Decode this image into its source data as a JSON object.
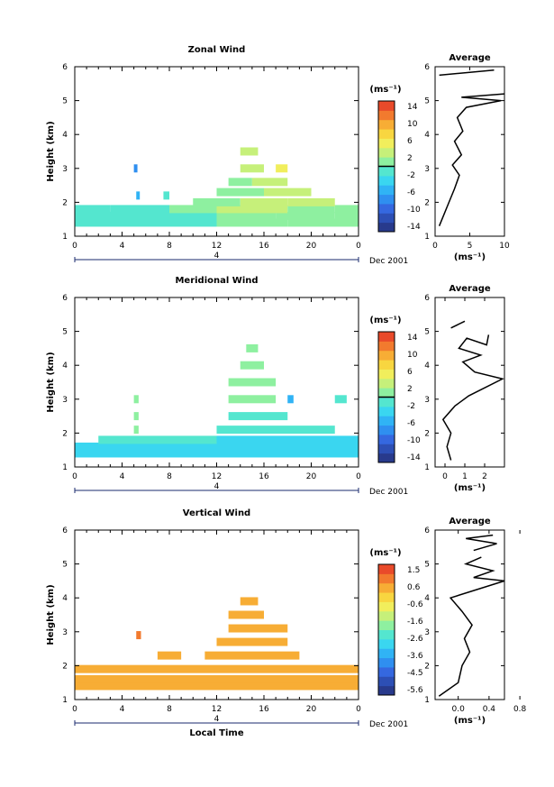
{
  "colors": {
    "scale": [
      "#283a8c",
      "#2d4fb5",
      "#3568e0",
      "#2f8ff0",
      "#30b3f5",
      "#3ad6f0",
      "#54e6cf",
      "#8ef0a0",
      "#c6f07a",
      "#f1ee5c",
      "#f8d640",
      "#f7ad35",
      "#f27a2e",
      "#e94a2a"
    ],
    "zero_line": "#000000"
  },
  "chart_data": [
    {
      "id": "zonal",
      "type": "heatmap",
      "title": "Zonal Wind",
      "ylabel": "Height (km)",
      "x_ticks": [
        "0",
        "4",
        "8",
        "12",
        "16",
        "20",
        "0"
      ],
      "xlim": [
        0,
        24
      ],
      "y_ticks": [
        "1",
        "2",
        "3",
        "4",
        "5",
        "6"
      ],
      "ylim": [
        1,
        6
      ],
      "date_scale": {
        "marker": "4",
        "label": "Dec 2001"
      },
      "colorbar": {
        "unit": "(ms⁻¹)",
        "ticks": [
          "14",
          "10",
          "6",
          "2",
          "-2",
          "-6",
          "-10",
          "-14"
        ],
        "range": [
          -16,
          16
        ],
        "zero": 0
      },
      "rows": [
        {
          "y": 1.4,
          "segments": [
            [
              0,
              12,
              -1
            ],
            [
              12,
              18,
              1
            ],
            [
              18,
              24,
              1
            ]
          ]
        },
        {
          "y": 1.6,
          "segments": [
            [
              0,
              8,
              -1
            ],
            [
              8,
              12,
              -1
            ],
            [
              12,
              17,
              2
            ],
            [
              17,
              22,
              2
            ],
            [
              22,
              24,
              1
            ]
          ]
        },
        {
          "y": 1.8,
          "segments": [
            [
              0,
              3,
              -2
            ],
            [
              3,
              8,
              -1
            ],
            [
              8,
              12,
              0
            ],
            [
              12,
              18,
              3
            ],
            [
              18,
              22,
              2
            ],
            [
              22,
              24,
              1
            ]
          ]
        },
        {
          "y": 2.0,
          "segments": [
            [
              10,
              14,
              1
            ],
            [
              14,
              18,
              3
            ],
            [
              18,
              22,
              3
            ]
          ]
        },
        {
          "y": 2.3,
          "segments": [
            [
              12,
              16,
              2
            ],
            [
              16,
              20,
              4
            ]
          ]
        },
        {
          "y": 2.6,
          "segments": [
            [
              13,
              15,
              2
            ],
            [
              15,
              18,
              4
            ]
          ]
        },
        {
          "y": 3.0,
          "segments": [
            [
              5,
              5.3,
              -8
            ],
            [
              14,
              16,
              3
            ],
            [
              17,
              18,
              5
            ]
          ]
        },
        {
          "y": 3.5,
          "segments": [
            [
              14,
              15.5,
              3
            ]
          ]
        },
        {
          "y": 2.2,
          "segments": [
            [
              5.2,
              5.5,
              -6
            ],
            [
              7.5,
              8,
              -1
            ]
          ]
        }
      ],
      "average": {
        "xlim": [
          0,
          10
        ],
        "x_ticks": [
          "0",
          "5",
          "10"
        ],
        "title": "Average",
        "xlabel": "(ms⁻¹)",
        "profile": [
          [
            0.6,
            1.3
          ],
          [
            1.2,
            1.6
          ],
          [
            2.0,
            2.0
          ],
          [
            2.8,
            2.4
          ],
          [
            3.5,
            2.8
          ],
          [
            2.5,
            3.1
          ],
          [
            3.8,
            3.4
          ],
          [
            2.8,
            3.8
          ],
          [
            4.0,
            4.1
          ],
          [
            3.2,
            4.5
          ],
          [
            4.5,
            4.8
          ],
          [
            9.5,
            5.0
          ],
          [
            3.8,
            5.1
          ],
          [
            10.5,
            5.2
          ]
        ],
        "profile_top": [
          [
            0.6,
            5.75
          ],
          [
            8.5,
            5.9
          ]
        ]
      }
    },
    {
      "id": "meridional",
      "type": "heatmap",
      "title": "Meridional Wind",
      "ylabel": "Height (km)",
      "x_ticks": [
        "0",
        "4",
        "8",
        "12",
        "16",
        "20",
        "0"
      ],
      "xlim": [
        0,
        24
      ],
      "y_ticks": [
        "1",
        "2",
        "3",
        "4",
        "5",
        "6"
      ],
      "ylim": [
        1,
        6
      ],
      "date_scale": {
        "marker": "4",
        "label": "Dec 2001"
      },
      "colorbar": {
        "unit": "(ms⁻¹)",
        "ticks": [
          "14",
          "10",
          "6",
          "2",
          "-2",
          "-6",
          "-10",
          "-14"
        ],
        "range": [
          -16,
          16
        ],
        "zero": 0
      },
      "rows": [
        {
          "y": 1.4,
          "segments": [
            [
              0,
              24,
              -4
            ]
          ]
        },
        {
          "y": 1.6,
          "segments": [
            [
              0,
              12,
              -3
            ],
            [
              12,
              24,
              -4
            ]
          ]
        },
        {
          "y": 1.8,
          "segments": [
            [
              2,
              12,
              -2
            ],
            [
              12,
              24,
              -3
            ]
          ]
        },
        {
          "y": 2.1,
          "segments": [
            [
              5,
              5.4,
              0
            ],
            [
              12,
              22,
              -2
            ]
          ]
        },
        {
          "y": 2.5,
          "segments": [
            [
              5,
              5.4,
              0
            ],
            [
              13,
              18,
              -1
            ]
          ]
        },
        {
          "y": 3.0,
          "segments": [
            [
              5,
              5.4,
              0
            ],
            [
              13,
              17,
              0
            ],
            [
              18,
              18.5,
              -6
            ],
            [
              22,
              23,
              -2
            ]
          ]
        },
        {
          "y": 3.5,
          "segments": [
            [
              13,
              17,
              0
            ],
            [
              14,
              16,
              1
            ]
          ]
        },
        {
          "y": 4.0,
          "segments": [
            [
              14,
              16,
              0
            ]
          ]
        },
        {
          "y": 4.5,
          "segments": [
            [
              14.5,
              15.5,
              0
            ]
          ]
        }
      ],
      "average": {
        "xlim": [
          -0.5,
          3
        ],
        "x_ticks": [
          "0",
          "1",
          "2"
        ],
        "title": "Average",
        "xlabel": "(ms⁻¹)",
        "profile": [
          [
            0.3,
            1.2
          ],
          [
            0.1,
            1.6
          ],
          [
            0.3,
            2.0
          ],
          [
            -0.1,
            2.4
          ],
          [
            0.5,
            2.8
          ],
          [
            1.2,
            3.1
          ],
          [
            2.9,
            3.6
          ],
          [
            1.5,
            3.8
          ],
          [
            0.9,
            4.1
          ],
          [
            1.8,
            4.3
          ],
          [
            0.7,
            4.5
          ],
          [
            1.1,
            4.8
          ],
          [
            2.1,
            4.6
          ],
          [
            2.2,
            4.9
          ]
        ],
        "profile_top": [
          [
            0.3,
            5.1
          ],
          [
            1.0,
            5.3
          ]
        ]
      }
    },
    {
      "id": "vertical",
      "type": "heatmap",
      "title": "Vertical Wind",
      "ylabel": "Height (km)",
      "xlabel": "Local Time",
      "x_ticks": [
        "0",
        "4",
        "8",
        "12",
        "16",
        "20",
        "0"
      ],
      "xlim": [
        0,
        24
      ],
      "y_ticks": [
        "1",
        "2",
        "3",
        "4",
        "5",
        "6"
      ],
      "ylim": [
        1,
        6
      ],
      "date_scale": {
        "marker": "4",
        "label": "Dec 2001"
      },
      "colorbar": {
        "unit": "(ms⁻¹)",
        "ticks": [
          "1.5",
          "0.6",
          "-0.6",
          "-1.6",
          "-2.6",
          "-3.6",
          "-4.5",
          "-5.6"
        ],
        "range": [
          -6.2,
          2.2
        ],
        "zero": null
      },
      "rows": [
        {
          "y": 1.4,
          "segments": [
            [
              0,
              24,
              0.5
            ]
          ]
        },
        {
          "y": 1.6,
          "segments": [
            [
              0,
              12,
              0.5
            ],
            [
              12,
              24,
              0.7
            ]
          ]
        },
        {
          "y": 1.9,
          "segments": [
            [
              0,
              8,
              0.5
            ],
            [
              8,
              12,
              0.6
            ],
            [
              12,
              20,
              0.8
            ],
            [
              20,
              24,
              0.6
            ]
          ]
        },
        {
          "y": 2.3,
          "segments": [
            [
              7,
              9,
              0.6
            ],
            [
              11,
              19,
              0.8
            ]
          ]
        },
        {
          "y": 2.7,
          "segments": [
            [
              12,
              18,
              0.8
            ]
          ]
        },
        {
          "y": 3.1,
          "segments": [
            [
              13,
              18,
              0.9
            ]
          ]
        },
        {
          "y": 3.5,
          "segments": [
            [
              13,
              16,
              0.8
            ]
          ]
        },
        {
          "y": 3.9,
          "segments": [
            [
              14,
              15.5,
              0.7
            ]
          ]
        },
        {
          "y": 2.9,
          "segments": [
            [
              5.2,
              5.6,
              1.2
            ]
          ]
        }
      ],
      "average": {
        "xlim": [
          -0.3,
          0.6
        ],
        "x_ticks": [
          "0.0",
          "0.4",
          "0.8"
        ],
        "title": "Average",
        "xlabel": "(ms⁻¹)",
        "profile": [
          [
            -0.25,
            1.1
          ],
          [
            0.0,
            1.5
          ],
          [
            0.05,
            2.0
          ],
          [
            0.15,
            2.4
          ],
          [
            0.08,
            2.8
          ],
          [
            0.18,
            3.2
          ],
          [
            0.05,
            3.6
          ],
          [
            -0.1,
            4.0
          ],
          [
            0.6,
            4.5
          ],
          [
            0.2,
            4.6
          ],
          [
            0.45,
            4.8
          ],
          [
            0.1,
            5.0
          ],
          [
            0.3,
            5.2
          ]
        ],
        "profile_top": [
          [
            0.2,
            5.4
          ],
          [
            0.5,
            5.6
          ],
          [
            0.1,
            5.75
          ],
          [
            0.45,
            5.85
          ]
        ]
      }
    }
  ]
}
